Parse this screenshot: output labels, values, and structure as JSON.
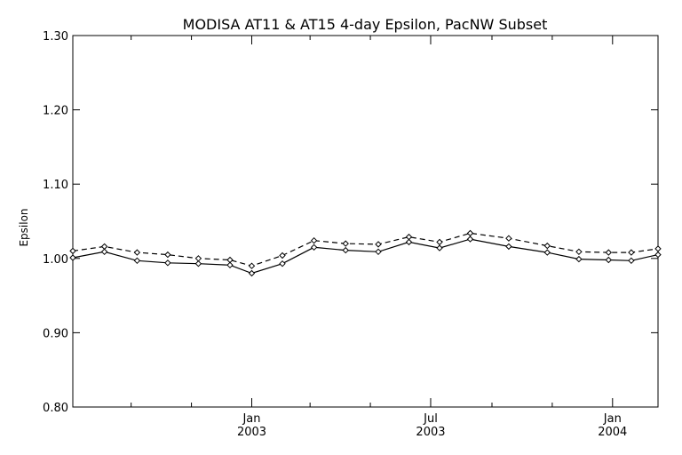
{
  "chart_data": {
    "type": "line",
    "title": "MODISA AT11 & AT15 4-day Epsilon, PacNW Subset",
    "xlabel": "",
    "ylabel": "Epsilon",
    "ylim": [
      0.8,
      1.3
    ],
    "xlim": [
      "2002-07-04",
      "2004-02-16"
    ],
    "y_ticks": [
      "0.80",
      "0.90",
      "1.00",
      "1.10",
      "1.20",
      "1.30"
    ],
    "x_ticks": [
      {
        "month": "Jan",
        "year": "2003",
        "date": "2003-01-01"
      },
      {
        "month": "Jul",
        "year": "2003",
        "date": "2003-07-01"
      },
      {
        "month": "Jan",
        "year": "2004",
        "date": "2004-01-01"
      }
    ],
    "x_minor_ticks": [
      "2002-09-01",
      "2002-11-01",
      "2003-03-01",
      "2003-05-01",
      "2003-09-01",
      "2003-11-01"
    ],
    "grid": false,
    "legend": "none",
    "series": [
      {
        "style": "solid",
        "x": [
          "2002-07-04",
          "2002-08-05",
          "2002-09-07",
          "2002-10-08",
          "2002-11-08",
          "2002-12-10",
          "2003-01-01",
          "2003-02-01",
          "2003-03-05",
          "2003-04-06",
          "2003-05-09",
          "2003-06-09",
          "2003-07-10",
          "2003-08-10",
          "2003-09-18",
          "2003-10-27",
          "2003-11-28",
          "2003-12-28",
          "2004-01-20",
          "2004-02-16"
        ],
        "y": [
          1.001,
          1.009,
          0.997,
          0.994,
          0.993,
          0.991,
          0.98,
          0.993,
          1.015,
          1.011,
          1.009,
          1.022,
          1.014,
          1.026,
          1.016,
          1.008,
          0.999,
          0.998,
          0.997,
          1.005
        ]
      },
      {
        "style": "dashed",
        "x": [
          "2002-07-04",
          "2002-08-05",
          "2002-09-07",
          "2002-10-08",
          "2002-11-08",
          "2002-12-10",
          "2003-01-01",
          "2003-02-01",
          "2003-03-05",
          "2003-04-06",
          "2003-05-09",
          "2003-06-09",
          "2003-07-10",
          "2003-08-10",
          "2003-09-18",
          "2003-10-27",
          "2003-11-28",
          "2003-12-28",
          "2004-01-20",
          "2004-02-16"
        ],
        "y": [
          1.01,
          1.016,
          1.008,
          1.005,
          1.0,
          0.998,
          0.99,
          1.004,
          1.024,
          1.02,
          1.019,
          1.029,
          1.022,
          1.034,
          1.027,
          1.017,
          1.009,
          1.008,
          1.008,
          1.013
        ]
      }
    ]
  }
}
